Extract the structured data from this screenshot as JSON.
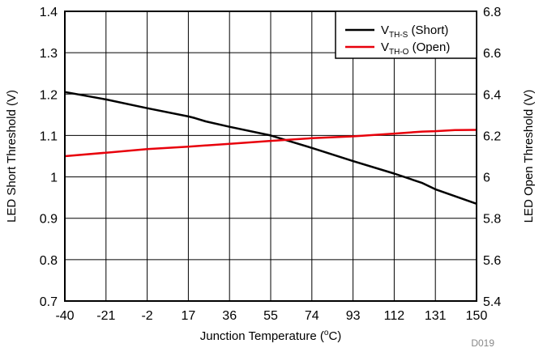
{
  "chart_data": {
    "type": "line",
    "xlabel": "Junction Temperature (",
    "xlabel_sup": "o",
    "xlabel_end": "C)",
    "ylabel_left": "LED Short Threshold (V)",
    "ylabel_right": "LED Open Threshold (V)",
    "xlim": [
      -40,
      150
    ],
    "x_ticks": [
      -40,
      -21,
      -2,
      17,
      36,
      55,
      74,
      93,
      112,
      131,
      150
    ],
    "ylim_left": [
      0.7,
      1.4
    ],
    "y_ticks_left": [
      "0.7",
      "0.8",
      "0.9",
      "1",
      "1.1",
      "1.2",
      "1.3",
      "1.4"
    ],
    "ylim_right": [
      5.4,
      6.8
    ],
    "y_ticks_right": [
      "5.4",
      "5.6",
      "5.8",
      "6",
      "6.2",
      "6.4",
      "6.6",
      "6.8"
    ],
    "grid": true,
    "legend_position": "top-right",
    "figure_id": "D019",
    "series": [
      {
        "name_main": "V",
        "name_sub": "TH-S",
        "name_suffix": " (Short)",
        "axis": "left",
        "color": "#000000",
        "x": [
          -40,
          -21,
          -2,
          17,
          20,
          25,
          36,
          55,
          74,
          93,
          112,
          125,
          131,
          150
        ],
        "y": [
          1.205,
          1.187,
          1.166,
          1.146,
          1.142,
          1.134,
          1.121,
          1.1,
          1.07,
          1.038,
          1.008,
          0.985,
          0.97,
          0.935
        ]
      },
      {
        "name_main": "V",
        "name_sub": "TH-O",
        "name_suffix": " (Open)",
        "axis": "right",
        "color": "#e8000b",
        "x": [
          -40,
          -21,
          -2,
          17,
          36,
          55,
          74,
          93,
          112,
          125,
          131,
          140,
          150
        ],
        "y": [
          6.1,
          6.117,
          6.134,
          6.146,
          6.16,
          6.174,
          6.187,
          6.196,
          6.209,
          6.219,
          6.221,
          6.226,
          6.227
        ]
      }
    ]
  }
}
